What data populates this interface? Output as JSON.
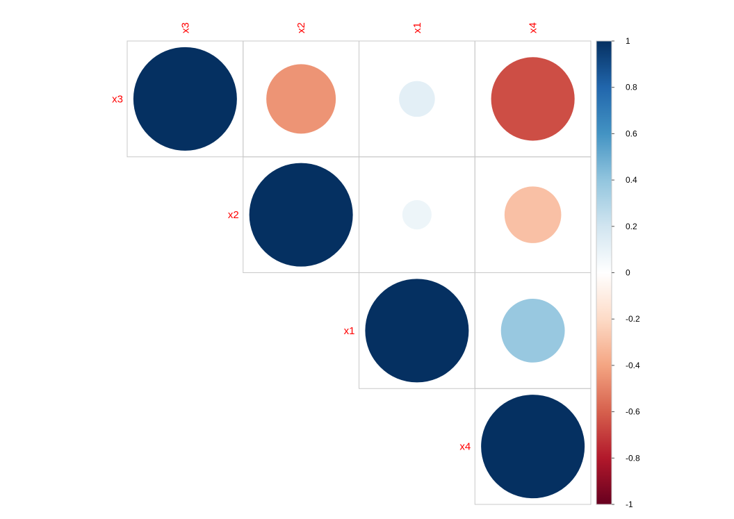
{
  "chart_data": {
    "type": "heatmap",
    "subtype": "correlation-circle-upper",
    "variables": [
      "x3",
      "x2",
      "x1",
      "x4"
    ],
    "matrix": [
      [
        1.0,
        -0.45,
        0.12,
        -0.65
      ],
      [
        -0.45,
        1.0,
        0.08,
        -0.3
      ],
      [
        0.12,
        0.08,
        1.0,
        0.38
      ],
      [
        -0.65,
        -0.3,
        0.38,
        1.0
      ]
    ],
    "colorbar": {
      "range": [
        -1,
        1
      ],
      "ticks": [
        "1",
        "0.8",
        "0.6",
        "0.4",
        "0.2",
        "0",
        "-0.2",
        "-0.4",
        "-0.6",
        "-0.8",
        "-1"
      ],
      "palette": [
        "#67001F",
        "#B2182B",
        "#D6604D",
        "#F4A582",
        "#FDDBC7",
        "#FFFFFF",
        "#D1E5F0",
        "#92C5DE",
        "#4393C3",
        "#2166AC",
        "#053061"
      ]
    },
    "label_color": "#FF0000",
    "grid_color": "#C8C8C8"
  }
}
